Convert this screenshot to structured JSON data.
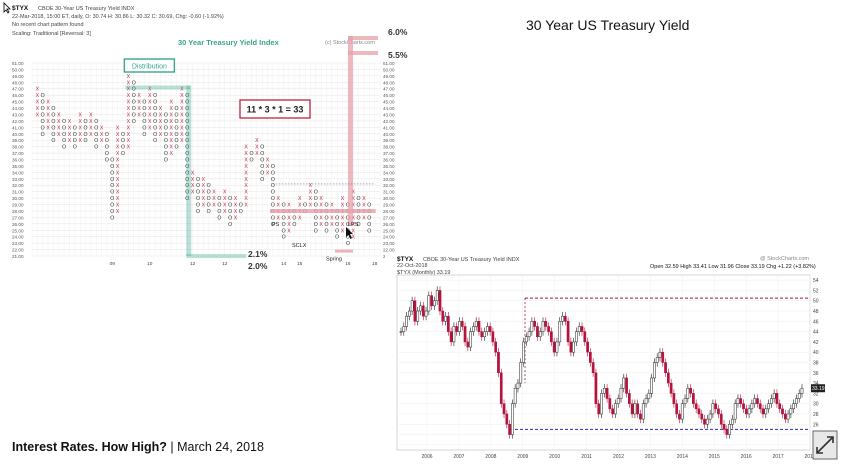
{
  "slide": {
    "title": "30 Year US Treasury Yield",
    "footer_bold": "Interest Rates. How High?",
    "footer_rest": " | March 24, 2018"
  },
  "colors": {
    "x_red": "#c0233a",
    "o_black": "#333333",
    "green": "#3aa58c",
    "pink": "#e8a0aa",
    "bar_red": "#b3143c",
    "dash_red": "#9b1b30",
    "dash_blue": "#2a2aa8"
  },
  "pnf": {
    "ticker": "$TYX",
    "name": "CBOE 30-Year US Treasury Yield INDX",
    "info": "22-Mar-2018, 15:00 ET, daily, O: 30.74  H: 30.86  L: 30.32  C: 30.69, Chg: -0.60 (-1.92%)",
    "pattern": "No recent chart pattern found",
    "scaling": "Scaling: Traditional [Reversal: 3]",
    "chart_title": "30 Year Treasury Yield Index",
    "watermark": "(c) StockCharts.com",
    "annotations": {
      "distribution": "Distribution",
      "count": "11 * 3 * 1 = 33",
      "ps_left": "PS",
      "sclx": "SCLX",
      "spring": "Spring",
      "lps": "LPS",
      "pct_21": "2.1%",
      "pct_20": "2.0%",
      "pct_60": "6.0%",
      "pct_55": "5.5%"
    },
    "price_labels": [
      "51.00",
      "50.00",
      "49.00",
      "48.00",
      "47.00",
      "46.00",
      "45.00",
      "44.00",
      "43.00",
      "42.00",
      "41.00",
      "40.00",
      "39.00",
      "38.00",
      "37.00",
      "36.00",
      "35.00",
      "34.00",
      "33.00",
      "32.00",
      "31.00",
      "30.00",
      "29.00",
      "28.00",
      "27.00",
      "26.00",
      "25.00",
      "24.00",
      "23.00",
      "22.00",
      "21.00"
    ],
    "year_labels": [
      {
        "label": "09",
        "col": 14
      },
      {
        "label": "10",
        "col": 21
      },
      {
        "label": "12",
        "col": 29
      },
      {
        "label": "12",
        "col": 35
      },
      {
        "label": "14",
        "col": 46
      },
      {
        "label": "15",
        "col": 49
      },
      {
        "label": "16",
        "col": 58
      },
      {
        "label": "18",
        "col": 63
      }
    ],
    "columns": [
      {
        "t": "X",
        "lo": 43,
        "hi": 47
      },
      {
        "t": "O",
        "lo": 40,
        "hi": 46
      },
      {
        "t": "X",
        "lo": 41,
        "hi": 45
      },
      {
        "t": "O",
        "lo": 39,
        "hi": 44
      },
      {
        "t": "X",
        "lo": 40,
        "hi": 43
      },
      {
        "t": "O",
        "lo": 38,
        "hi": 42
      },
      {
        "t": "X",
        "lo": 39,
        "hi": 42
      },
      {
        "t": "O",
        "lo": 38,
        "hi": 41
      },
      {
        "t": "X",
        "lo": 39,
        "hi": 43
      },
      {
        "t": "O",
        "lo": 39,
        "hi": 42
      },
      {
        "t": "X",
        "lo": 40,
        "hi": 43
      },
      {
        "t": "O",
        "lo": 38,
        "hi": 42
      },
      {
        "t": "X",
        "lo": 39,
        "hi": 41
      },
      {
        "t": "O",
        "lo": 36,
        "hi": 40
      },
      {
        "t": "O",
        "lo": 27,
        "hi": 36
      },
      {
        "t": "X",
        "lo": 28,
        "hi": 41
      },
      {
        "t": "O",
        "lo": 37,
        "hi": 40
      },
      {
        "t": "X",
        "lo": 38,
        "hi": 49
      },
      {
        "t": "O",
        "lo": 42,
        "hi": 48
      },
      {
        "t": "X",
        "lo": 43,
        "hi": 46
      },
      {
        "t": "O",
        "lo": 40,
        "hi": 45
      },
      {
        "t": "X",
        "lo": 41,
        "hi": 47
      },
      {
        "t": "O",
        "lo": 39,
        "hi": 46
      },
      {
        "t": "X",
        "lo": 40,
        "hi": 44
      },
      {
        "t": "O",
        "lo": 36,
        "hi": 43
      },
      {
        "t": "X",
        "lo": 37,
        "hi": 45
      },
      {
        "t": "O",
        "lo": 38,
        "hi": 44
      },
      {
        "t": "X",
        "lo": 39,
        "hi": 47
      },
      {
        "t": "O",
        "lo": 30,
        "hi": 46
      },
      {
        "t": "X",
        "lo": 31,
        "hi": 34
      },
      {
        "t": "O",
        "lo": 28,
        "hi": 33
      },
      {
        "t": "X",
        "lo": 29,
        "hi": 33
      },
      {
        "t": "O",
        "lo": 28,
        "hi": 32
      },
      {
        "t": "X",
        "lo": 29,
        "hi": 31
      },
      {
        "t": "O",
        "lo": 27,
        "hi": 30
      },
      {
        "t": "X",
        "lo": 28,
        "hi": 31
      },
      {
        "t": "O",
        "lo": 26,
        "hi": 30
      },
      {
        "t": "X",
        "lo": 27,
        "hi": 30
      },
      {
        "t": "O",
        "lo": 28,
        "hi": 29
      },
      {
        "t": "X",
        "lo": 29,
        "hi": 38
      },
      {
        "t": "O",
        "lo": 36,
        "hi": 37
      },
      {
        "t": "X",
        "lo": 37,
        "hi": 39
      },
      {
        "t": "O",
        "lo": 33,
        "hi": 38
      },
      {
        "t": "X",
        "lo": 34,
        "hi": 36
      },
      {
        "t": "O",
        "lo": 26,
        "hi": 35
      },
      {
        "t": "X",
        "lo": 27,
        "hi": 30
      },
      {
        "t": "O",
        "lo": 24,
        "hi": 29
      },
      {
        "t": "X",
        "lo": 25,
        "hi": 29
      },
      {
        "t": "O",
        "lo": 26,
        "hi": 28
      },
      {
        "t": "X",
        "lo": 27,
        "hi": 30
      },
      {
        "t": "O",
        "lo": 28,
        "hi": 29
      },
      {
        "t": "X",
        "lo": 29,
        "hi": 32
      },
      {
        "t": "O",
        "lo": 25,
        "hi": 31
      },
      {
        "t": "X",
        "lo": 26,
        "hi": 30
      },
      {
        "t": "O",
        "lo": 25,
        "hi": 29
      },
      {
        "t": "X",
        "lo": 26,
        "hi": 29
      },
      {
        "t": "O",
        "lo": 24,
        "hi": 28
      },
      {
        "t": "X",
        "lo": 25,
        "hi": 30
      },
      {
        "t": "O",
        "lo": 23,
        "hi": 29
      },
      {
        "t": "X",
        "lo": 24,
        "hi": 31
      },
      {
        "t": "O",
        "lo": 26,
        "hi": 30
      },
      {
        "t": "X",
        "lo": 27,
        "hi": 30
      },
      {
        "t": "O",
        "lo": 25,
        "hi": 29
      }
    ]
  },
  "line_chart": {
    "ticker": "$TYX",
    "name": "CBOE 30-Year US Treasury Yield INDX",
    "watermark": "@ StockCharts.com",
    "date": "22-Oct-2018",
    "legend": "$TYX (Monthly) 33.19",
    "ohlc": "Open 32.59  High 33.41  Low 31.96  Close 33.19  Chg +1.22 (+3.82%)",
    "last_value": "33.19"
  },
  "chart_data": [
    {
      "type": "scatter",
      "title": "30 Year Treasury Yield Index",
      "subtitle": "Point & Figure, Scaling: Traditional [Reversal: 3]",
      "ylim": [
        21,
        51
      ],
      "note": "Point & figure columns stored in pnf.columns (t = X or O, lo/hi in yield x10).",
      "count_target": "11 * 3 * 1 = 33"
    },
    {
      "type": "line",
      "title": "$TYX (Monthly) 33.19",
      "x_label_years": [
        "2006",
        "2007",
        "2008",
        "2009",
        "2010",
        "2011",
        "2012",
        "2013",
        "2014",
        "2015",
        "2016",
        "2017",
        "2018"
      ],
      "y_ticks": [
        22,
        24,
        26,
        28,
        30,
        32,
        34,
        36,
        38,
        40,
        42,
        44,
        46,
        48,
        50,
        52,
        54
      ],
      "ylim": [
        21,
        55
      ],
      "resistance": 50.5,
      "support": 25,
      "series": [
        {
          "name": "$TYX",
          "values": [
            44,
            45,
            47,
            48,
            50,
            46,
            48,
            49,
            47,
            48,
            51,
            49,
            50,
            52,
            48,
            46,
            47,
            44,
            42,
            45,
            44,
            46,
            45,
            42,
            41,
            44,
            45,
            46,
            44,
            43,
            44,
            45,
            44,
            42,
            40,
            36,
            30,
            28,
            26,
            24,
            30,
            33,
            34,
            38,
            42,
            43,
            44,
            46,
            45,
            43,
            44,
            46,
            45,
            44,
            42,
            40,
            42,
            46,
            47,
            46,
            42,
            40,
            42,
            44,
            45,
            44,
            42,
            40,
            38,
            36,
            30,
            28,
            32,
            33,
            31,
            29,
            28,
            30,
            31,
            33,
            35,
            32,
            30,
            28,
            30,
            28,
            27,
            30,
            31,
            32,
            35,
            38,
            39,
            40,
            38,
            36,
            34,
            32,
            30,
            28,
            27,
            30,
            31,
            33,
            32,
            30,
            29,
            28,
            27,
            26,
            27,
            28,
            30,
            29,
            28,
            26,
            25,
            24,
            26,
            27,
            30,
            31,
            30,
            29,
            28,
            29,
            30,
            31,
            30,
            29,
            28,
            29,
            30,
            31,
            32,
            30,
            29,
            28,
            27,
            28,
            29,
            30,
            31,
            32,
            33
          ]
        }
      ]
    }
  ]
}
